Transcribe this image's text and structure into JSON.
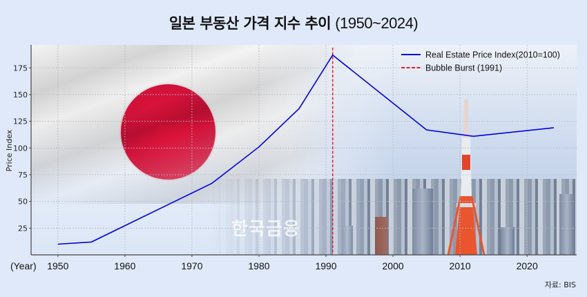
{
  "title": {
    "korean": "일본 부동산 가격 지수 추이",
    "range": "(1950~2024)"
  },
  "source_label": "자료: BIS",
  "watermark": "한국금융",
  "background": {
    "left_image": "japan-flag",
    "right_image": "tokyo-skyline-with-tokyo-tower"
  },
  "colors": {
    "line": "#0000e0",
    "bubble_line": "#d9202a",
    "grid": "#b8bcc4",
    "axis": "#444444",
    "page_bg": "#dfe9fa"
  },
  "chart_data": {
    "type": "line",
    "title": "일본 부동산 가격 지수 추이 (1950~2024)",
    "xlabel": "(Year)",
    "ylabel": "Price Index",
    "x": [
      1950,
      1955,
      1973,
      1980,
      1986,
      1991,
      2005,
      2012,
      2024
    ],
    "series": [
      {
        "name": "Real Estate Price Index(2010=100)",
        "style": "solid",
        "color": "#0000e0",
        "values": [
          10,
          12,
          67,
          101,
          137,
          187,
          117,
          111,
          119
        ]
      }
    ],
    "annotations": [
      {
        "type": "vline",
        "x": 1991,
        "label": "Bubble Burst (1991)",
        "style": "dashed",
        "color": "#d9202a"
      }
    ],
    "xticks": [
      1950,
      1960,
      1970,
      1980,
      1990,
      2000,
      2010,
      2020
    ],
    "yticks": [
      25,
      50,
      75,
      100,
      125,
      150,
      175
    ],
    "xlim": [
      1946,
      2027.4
    ],
    "ylim": [
      0,
      196.5
    ],
    "grid": true,
    "legend": {
      "position": "upper right",
      "entries": [
        "Real Estate Price Index(2010=100)",
        "Bubble Burst (1991)"
      ]
    }
  }
}
